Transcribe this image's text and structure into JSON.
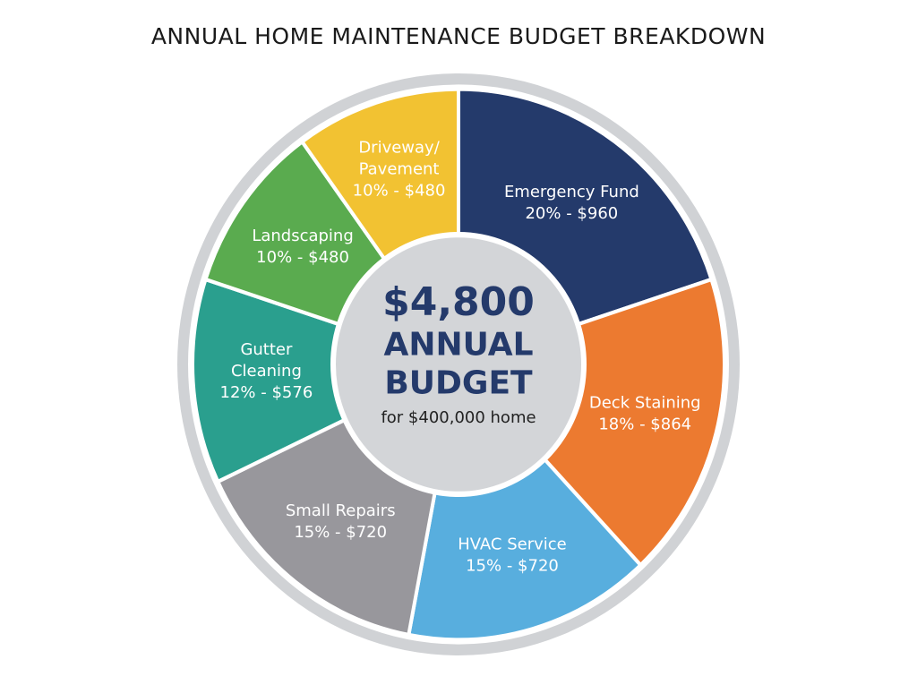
{
  "chart_data": {
    "type": "pie",
    "title": "ANNUAL HOME MAINTENANCE BUDGET BREAKDOWN",
    "categories": [
      "Emergency Fund",
      "Deck Staining",
      "HVAC Service",
      "Small Repairs",
      "Gutter\nCleaning",
      "Landscaping",
      "Driveway/\nPavement"
    ],
    "values": [
      20,
      18,
      15,
      15,
      12,
      10,
      10
    ],
    "value_labels": [
      "20% - $960",
      "18% - $864",
      "15% - $720",
      "15% - $720",
      "12% - $576",
      "10% - $480",
      "10% - $480"
    ],
    "colors": [
      "#243a6b",
      "#ec7a30",
      "#58aede",
      "#98979c",
      "#2a9f8e",
      "#5aab4f",
      "#f2c232"
    ],
    "center_title": "$4,800",
    "center_label": "ANNUAL\nBUDGET",
    "center_note": "for $400,000 home"
  }
}
